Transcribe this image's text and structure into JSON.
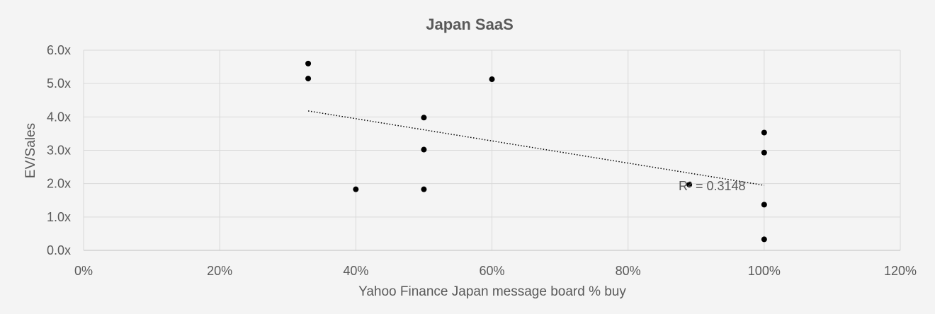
{
  "chart_data": {
    "type": "scatter",
    "title": "Japan SaaS",
    "xlabel": "Yahoo Finance Japan message board % buy",
    "ylabel": "EV/Sales",
    "xlim": [
      0,
      120
    ],
    "ylim": [
      0,
      6
    ],
    "x_ticks": [
      "0%",
      "20%",
      "40%",
      "60%",
      "80%",
      "100%",
      "120%"
    ],
    "y_ticks": [
      "0.0x",
      "1.0x",
      "2.0x",
      "3.0x",
      "4.0x",
      "5.0x",
      "6.0x"
    ],
    "grid": true,
    "legend": "none",
    "marker_color": "#000000",
    "points": [
      {
        "x": 33,
        "y": 5.6
      },
      {
        "x": 33,
        "y": 5.15
      },
      {
        "x": 40,
        "y": 1.83
      },
      {
        "x": 50,
        "y": 3.98
      },
      {
        "x": 50,
        "y": 3.02
      },
      {
        "x": 50,
        "y": 1.83
      },
      {
        "x": 60,
        "y": 5.13
      },
      {
        "x": 89,
        "y": 1.97
      },
      {
        "x": 100,
        "y": 3.53
      },
      {
        "x": 100,
        "y": 2.93
      },
      {
        "x": 100,
        "y": 1.37
      },
      {
        "x": 100,
        "y": 0.33
      }
    ],
    "trendline": {
      "type": "linear",
      "start": {
        "x": 33,
        "y": 4.18
      },
      "end": {
        "x": 100,
        "y": 1.95
      },
      "r_squared_label": "R² = 0.3148"
    }
  }
}
